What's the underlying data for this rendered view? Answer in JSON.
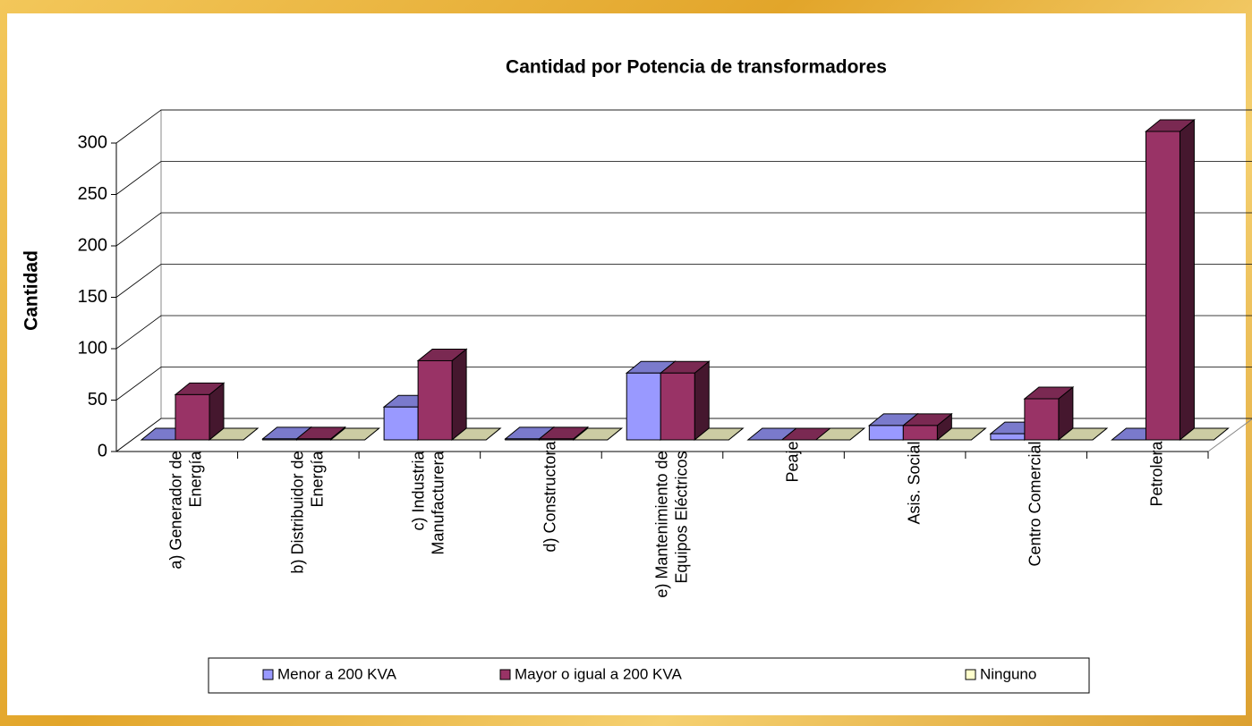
{
  "chart_data": {
    "type": "bar3d",
    "title": "Cantidad por Potencia de transformadores",
    "y_label": "Cantidad",
    "categories": [
      "a) Generador de Energía",
      "b) Distribuidor de Energía",
      "c) Industria Manufacturera",
      "d) Constructora",
      "e) Mantenimiento de Equipos Eléctricos",
      "Peaje",
      "Asis.  Social",
      "Centro Comercial",
      "Petrolera"
    ],
    "series": [
      {
        "name": "Menor a 200 KVA",
        "color": "#9999ff",
        "values": [
          0,
          1,
          32,
          1,
          65,
          0,
          14,
          6,
          0
        ]
      },
      {
        "name": "Mayor o igual a 200 KVA",
        "color": "#993366",
        "values": [
          44,
          1,
          77,
          1,
          65,
          0,
          14,
          40,
          300
        ]
      },
      {
        "name": "Ninguno",
        "color": "#ffffcc",
        "values": [
          0,
          0,
          0,
          0,
          0,
          0,
          0,
          0,
          0
        ]
      }
    ],
    "ylim": [
      0,
      300
    ],
    "yticks": [
      0,
      50,
      100,
      150,
      200,
      250,
      300
    ],
    "grid": true,
    "legend": "bottom"
  }
}
